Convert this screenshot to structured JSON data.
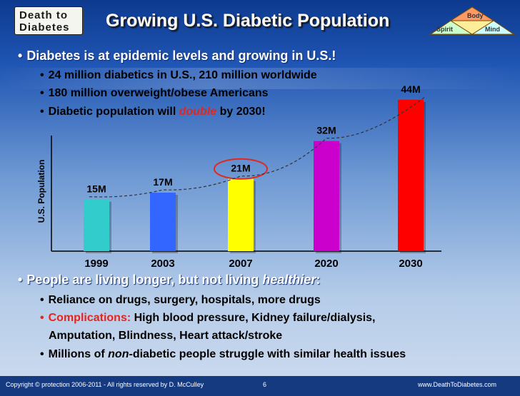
{
  "logo": {
    "line1": "Death to",
    "line2": "Diabetes"
  },
  "title": "Growing U.S. Diabetic Population",
  "triangle": {
    "top": "Body",
    "left": "Spirit",
    "right": "Mind"
  },
  "bullets": {
    "b1": "Diabetes is at epidemic levels and growing in U.S.!",
    "b1_subs": {
      "s1": "24 million diabetics in U.S., 210 million worldwide",
      "s2": "180 million overweight/obese Americans",
      "s3_pre": "Diabetic population will ",
      "s3_emph": "double",
      "s3_post": " by 2030!"
    },
    "b2_pre": "People are living longer, but not living ",
    "b2_emph": "healthier",
    "b2_post": ":",
    "b2_subs": {
      "s1": "Reliance on drugs, surgery, hospitals, more drugs",
      "s2_red": "Complications:",
      "s2_rest": " High blood pressure, Kidney failure/dialysis,",
      "s2_cont": "Amputation, Blindness, Heart attack/stroke",
      "s3_pre": "Millions of ",
      "s3_emph": "non",
      "s3_post": "-diabetic people struggle with similar health issues"
    },
    "bullet_char": "•"
  },
  "chart_data": {
    "type": "bar",
    "categories": [
      "1999",
      "2003",
      "2007",
      "2020",
      "2030"
    ],
    "values": [
      15,
      17,
      21,
      32,
      44
    ],
    "data_labels": [
      "15M",
      "17M",
      "21M",
      "32M",
      "44M"
    ],
    "colors": [
      "#33cccc",
      "#3366ff",
      "#ffff00",
      "#cc00cc",
      "#ff0000"
    ],
    "ylabel": "U.S. Population",
    "ylim": [
      0,
      45
    ],
    "highlighted": "2007",
    "trend_line": "dashed"
  },
  "footer": {
    "copyright": "Copyright © protection 2006-2011 - All rights reserved by D. McCulley",
    "page": "6",
    "url": "www.DeathToDiabetes.com"
  }
}
